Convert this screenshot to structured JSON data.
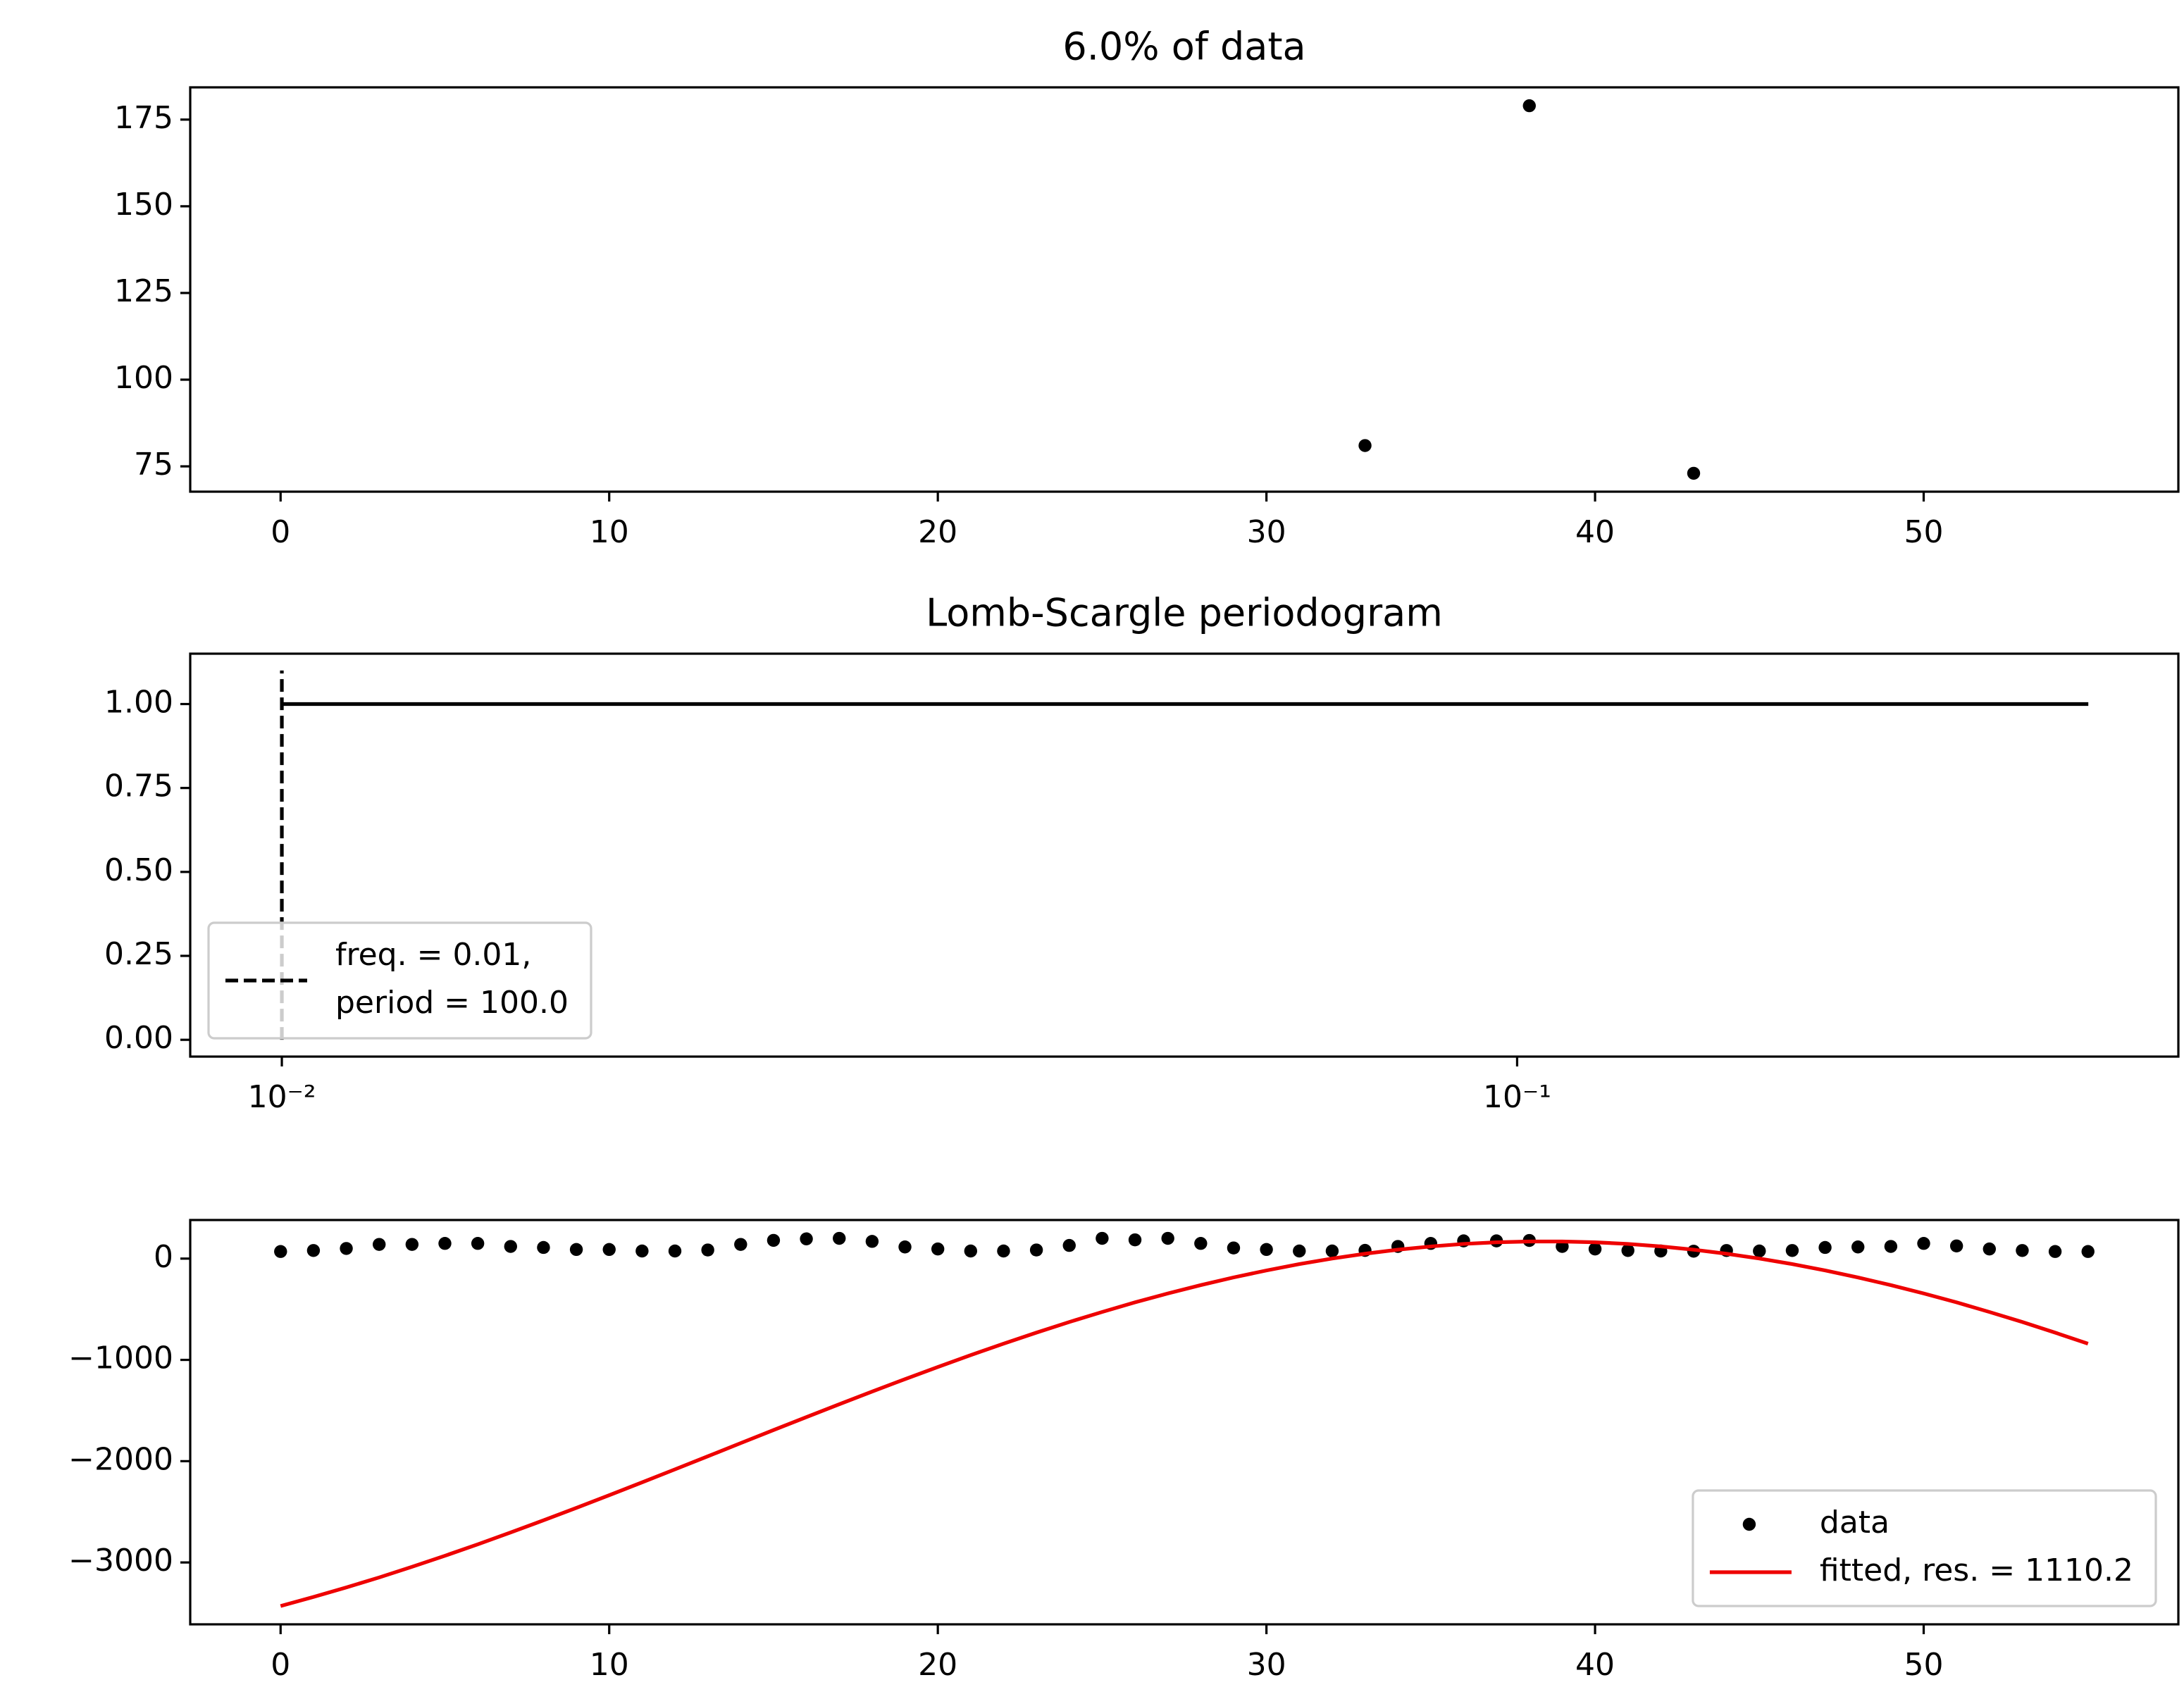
{
  "chart_data": [
    {
      "type": "scatter",
      "title": "6.0% of data",
      "x": [
        33,
        38,
        43
      ],
      "series": [
        {
          "color": "#000000",
          "values": [
            81,
            179,
            73
          ]
        }
      ],
      "xlim": [
        -2.75,
        57.75
      ],
      "xticks": [
        0,
        10,
        20,
        30,
        40,
        50
      ],
      "ylim": [
        67.7,
        184.3
      ],
      "yticks": [
        75,
        100,
        125,
        150,
        175
      ]
    },
    {
      "type": "line",
      "title": "Lomb-Scargle periodogram",
      "xscale": "log",
      "series": [
        {
          "color": "#000000",
          "x": [
            0.01,
            0.29
          ],
          "values": [
            1,
            1
          ]
        }
      ],
      "vlines": [
        {
          "x": 0.01,
          "ymin": 0,
          "ymax": 1.1,
          "color": "#000000",
          "style": "dashed",
          "name": [
            "freq. = 0.01,",
            "period = 100.0"
          ]
        }
      ],
      "xlim": [
        0.00843,
        0.343
      ],
      "xticks": [
        {
          "value": 0.01,
          "label": "10⁻²"
        },
        {
          "value": 0.1,
          "label": "10⁻¹"
        }
      ],
      "ylim": [
        -0.05,
        1.15
      ],
      "yticks": [
        {
          "value": 0,
          "label": "0.00"
        },
        {
          "value": 0.25,
          "label": "0.25"
        },
        {
          "value": 0.5,
          "label": "0.50"
        },
        {
          "value": 0.75,
          "label": "0.75"
        },
        {
          "value": 1,
          "label": "1.00"
        }
      ],
      "legend": "lower left"
    },
    {
      "type": "line",
      "x": [
        0,
        1,
        2,
        3,
        4,
        5,
        6,
        7,
        8,
        9,
        10,
        11,
        12,
        13,
        14,
        15,
        16,
        17,
        18,
        19,
        20,
        21,
        22,
        23,
        24,
        25,
        26,
        27,
        28,
        29,
        30,
        31,
        32,
        33,
        34,
        35,
        36,
        37,
        38,
        39,
        40,
        41,
        42,
        43,
        44,
        45,
        46,
        47,
        48,
        49,
        50,
        51,
        52,
        53,
        54,
        55
      ],
      "series": [
        {
          "name": "data",
          "kind": "scatter",
          "color": "#000000",
          "values": [
            70,
            80,
            100,
            140,
            140,
            150,
            150,
            120,
            110,
            90,
            90,
            75,
            75,
            85,
            140,
            180,
            195,
            200,
            170,
            115,
            95,
            75,
            75,
            85,
            130,
            200,
            185,
            200,
            150,
            105,
            90,
            75,
            75,
            81,
            120,
            150,
            175,
            175,
            179,
            120,
            95,
            80,
            75,
            73,
            80,
            75,
            80,
            110,
            115,
            120,
            150,
            125,
            95,
            80,
            70,
            70
          ]
        },
        {
          "name": "fitted, res. = 1110.2",
          "kind": "line",
          "color": "#ee0000",
          "values": [
            -3430,
            -3341,
            -3247,
            -3148,
            -3043,
            -2934,
            -2821,
            -2704,
            -2584,
            -2461,
            -2336,
            -2209,
            -2081,
            -1952,
            -1822,
            -1693,
            -1565,
            -1438,
            -1313,
            -1190,
            -1070,
            -953,
            -840,
            -731,
            -626,
            -527,
            -432,
            -344,
            -262,
            -186,
            -117,
            -54,
            1,
            48,
            88,
            120,
            145,
            161,
            169,
            169,
            161,
            145,
            120,
            88,
            48,
            1,
            -54,
            -117,
            -186,
            -262,
            -344,
            -432,
            -527,
            -626,
            -731,
            -840
          ]
        }
      ],
      "xlim": [
        -2.75,
        57.75
      ],
      "xticks": [
        0,
        10,
        20,
        30,
        40,
        50
      ],
      "ylim": [
        -3611,
        381
      ],
      "yticks": [
        {
          "value": -3000,
          "label": "−3000"
        },
        {
          "value": -2000,
          "label": "−2000"
        },
        {
          "value": -1000,
          "label": "−1000"
        },
        0
      ],
      "legend": "lower right"
    }
  ]
}
